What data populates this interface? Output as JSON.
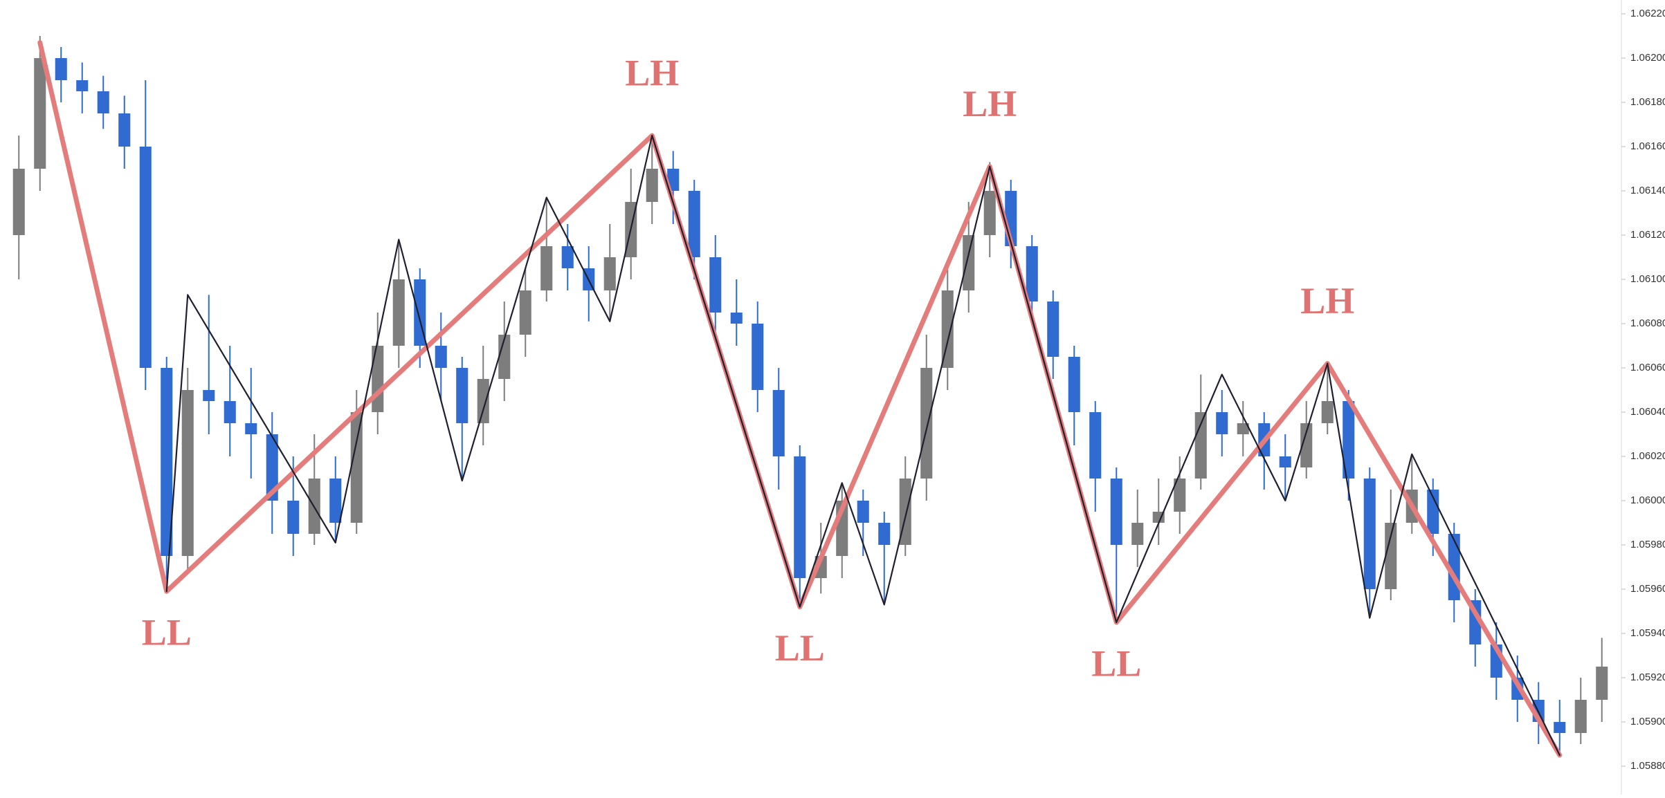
{
  "chart_data": {
    "type": "candlestick",
    "open": [
      1.0612,
      1.0615,
      1.062,
      1.0619,
      1.06185,
      1.06175,
      1.0616,
      1.0606,
      1.05975,
      1.0605,
      1.06045,
      1.06035,
      1.0603,
      1.06,
      1.05985,
      1.0601,
      1.0599,
      1.0604,
      1.0607,
      1.061,
      1.0607,
      1.0606,
      1.06035,
      1.06055,
      1.06075,
      1.06095,
      1.06115,
      1.06105,
      1.06095,
      1.0611,
      1.06135,
      1.0615,
      1.0614,
      1.0611,
      1.06085,
      1.0608,
      1.0605,
      1.0602,
      1.05965,
      1.05975,
      1.06,
      1.0599,
      1.0598,
      1.0601,
      1.0606,
      1.06095,
      1.0612,
      1.0614,
      1.06115,
      1.0609,
      1.06065,
      1.0604,
      1.0601,
      1.0598,
      1.0599,
      1.05995,
      1.0601,
      1.0604,
      1.0603,
      1.06035,
      1.0602,
      1.06015,
      1.06035,
      1.06045,
      1.0601,
      1.0596,
      1.0599,
      1.06005,
      1.05985,
      1.05955,
      1.05935,
      1.0592,
      1.0591,
      1.059,
      1.05895,
      1.0591
    ],
    "high": [
      1.06165,
      1.0621,
      1.06205,
      1.06198,
      1.06192,
      1.06183,
      1.0619,
      1.06065,
      1.0606,
      1.06093,
      1.0607,
      1.0606,
      1.0604,
      1.0602,
      1.0603,
      1.0602,
      1.0605,
      1.06085,
      1.06118,
      1.06105,
      1.06085,
      1.06065,
      1.0607,
      1.0609,
      1.06105,
      1.06137,
      1.06125,
      1.06115,
      1.06125,
      1.0615,
      1.06165,
      1.06158,
      1.06145,
      1.0612,
      1.061,
      1.0609,
      1.0606,
      1.06025,
      1.0599,
      1.06008,
      1.06005,
      1.05995,
      1.0602,
      1.06075,
      1.06105,
      1.06135,
      1.06153,
      1.06145,
      1.0612,
      1.06095,
      1.0607,
      1.06045,
      1.06015,
      1.06005,
      1.0601,
      1.0602,
      1.06057,
      1.0605,
      1.06045,
      1.0604,
      1.0603,
      1.06045,
      1.06063,
      1.0605,
      1.06015,
      1.06005,
      1.06021,
      1.0601,
      1.0599,
      1.0596,
      1.05945,
      1.0593,
      1.05918,
      1.0591,
      1.0592,
      1.05938
    ],
    "low": [
      1.061,
      1.0614,
      1.0618,
      1.06175,
      1.06168,
      1.0615,
      1.0605,
      1.0596,
      1.05968,
      1.0603,
      1.0602,
      1.0601,
      1.05985,
      1.05975,
      1.0598,
      1.05981,
      1.05985,
      1.0603,
      1.0606,
      1.0606,
      1.06045,
      1.06009,
      1.06025,
      1.06045,
      1.06065,
      1.0609,
      1.06095,
      1.06081,
      1.06081,
      1.061,
      1.06125,
      1.06125,
      1.061,
      1.06075,
      1.0607,
      1.0604,
      1.06005,
      1.05952,
      1.05958,
      1.05965,
      1.05975,
      1.05953,
      1.05975,
      1.06,
      1.0605,
      1.06085,
      1.0611,
      1.06105,
      1.0608,
      1.06055,
      1.06025,
      1.05995,
      1.05945,
      1.0597,
      1.0598,
      1.05985,
      1.06005,
      1.0602,
      1.0602,
      1.06005,
      1.06,
      1.0601,
      1.0603,
      1.06,
      1.05947,
      1.05955,
      1.05985,
      1.05975,
      1.05945,
      1.05925,
      1.0591,
      1.059,
      1.0589,
      1.05885,
      1.0589,
      1.059
    ],
    "close": [
      1.0615,
      1.062,
      1.0619,
      1.06185,
      1.06175,
      1.0616,
      1.0606,
      1.05975,
      1.0605,
      1.06045,
      1.06035,
      1.0603,
      1.06,
      1.05985,
      1.0601,
      1.0599,
      1.0604,
      1.0607,
      1.061,
      1.0607,
      1.0606,
      1.06035,
      1.06055,
      1.06075,
      1.06095,
      1.06115,
      1.06105,
      1.06095,
      1.0611,
      1.06135,
      1.0615,
      1.0614,
      1.0611,
      1.06085,
      1.0608,
      1.0605,
      1.0602,
      1.05965,
      1.05975,
      1.06,
      1.0599,
      1.0598,
      1.0601,
      1.0606,
      1.06095,
      1.0612,
      1.0614,
      1.06115,
      1.0609,
      1.06065,
      1.0604,
      1.0601,
      1.0598,
      1.0599,
      1.05995,
      1.0601,
      1.0604,
      1.0603,
      1.06035,
      1.0602,
      1.06015,
      1.06035,
      1.06045,
      1.0601,
      1.0596,
      1.0599,
      1.06005,
      1.05985,
      1.05955,
      1.05935,
      1.0592,
      1.0591,
      1.059,
      1.05895,
      1.0591,
      1.05925
    ],
    "up_color": "#7d7d7d",
    "down_color": "#2f6bd0",
    "zigzags": [
      {
        "color": "#e57c7c",
        "x": [
          1,
          7,
          30,
          37,
          46,
          52,
          62,
          73
        ],
        "values": [
          1.06207,
          1.05959,
          1.06165,
          1.05952,
          1.06151,
          1.05945,
          1.06062,
          1.05885
        ],
        "labels": [
          null,
          "LL",
          "LH",
          "LL",
          "LH",
          "LL",
          "LH",
          null
        ]
      },
      {
        "color": "#1f1f2e",
        "x": [
          7,
          8,
          15,
          18,
          21,
          25,
          28,
          30,
          37,
          39,
          41,
          46,
          52,
          57,
          60,
          62,
          64,
          66,
          73
        ],
        "values": [
          1.05959,
          1.06093,
          1.05981,
          1.06118,
          1.06009,
          1.06137,
          1.06081,
          1.06165,
          1.05952,
          1.06008,
          1.05953,
          1.06151,
          1.05945,
          1.06057,
          1.06,
          1.06062,
          1.05947,
          1.06021,
          1.05885
        ]
      }
    ],
    "ylim": [
      1.0587,
      1.06225
    ],
    "yticks": [
      {
        "value": 1.0588,
        "label": "1.05880"
      },
      {
        "value": 1.059,
        "label": "1.05900"
      },
      {
        "value": 1.0592,
        "label": "1.05920"
      },
      {
        "value": 1.0594,
        "label": "1.05940"
      },
      {
        "value": 1.0596,
        "label": "1.05960"
      },
      {
        "value": 1.0598,
        "label": "1.05980"
      },
      {
        "value": 1.06,
        "label": "1.06000"
      },
      {
        "value": 1.0602,
        "label": "1.06020"
      },
      {
        "value": 1.0604,
        "label": "1.06040"
      },
      {
        "value": 1.0606,
        "label": "1.06060"
      },
      {
        "value": 1.0608,
        "label": "1.06080"
      },
      {
        "value": 1.061,
        "label": "1.06100"
      },
      {
        "value": 1.0612,
        "label": "1.06120"
      },
      {
        "value": 1.0614,
        "label": "1.06140"
      },
      {
        "value": 1.0616,
        "label": "1.06160"
      },
      {
        "value": 1.0618,
        "label": "1.06180"
      },
      {
        "value": 1.062,
        "label": "1.06200"
      },
      {
        "value": 1.0622,
        "label": "1.06220"
      }
    ]
  }
}
